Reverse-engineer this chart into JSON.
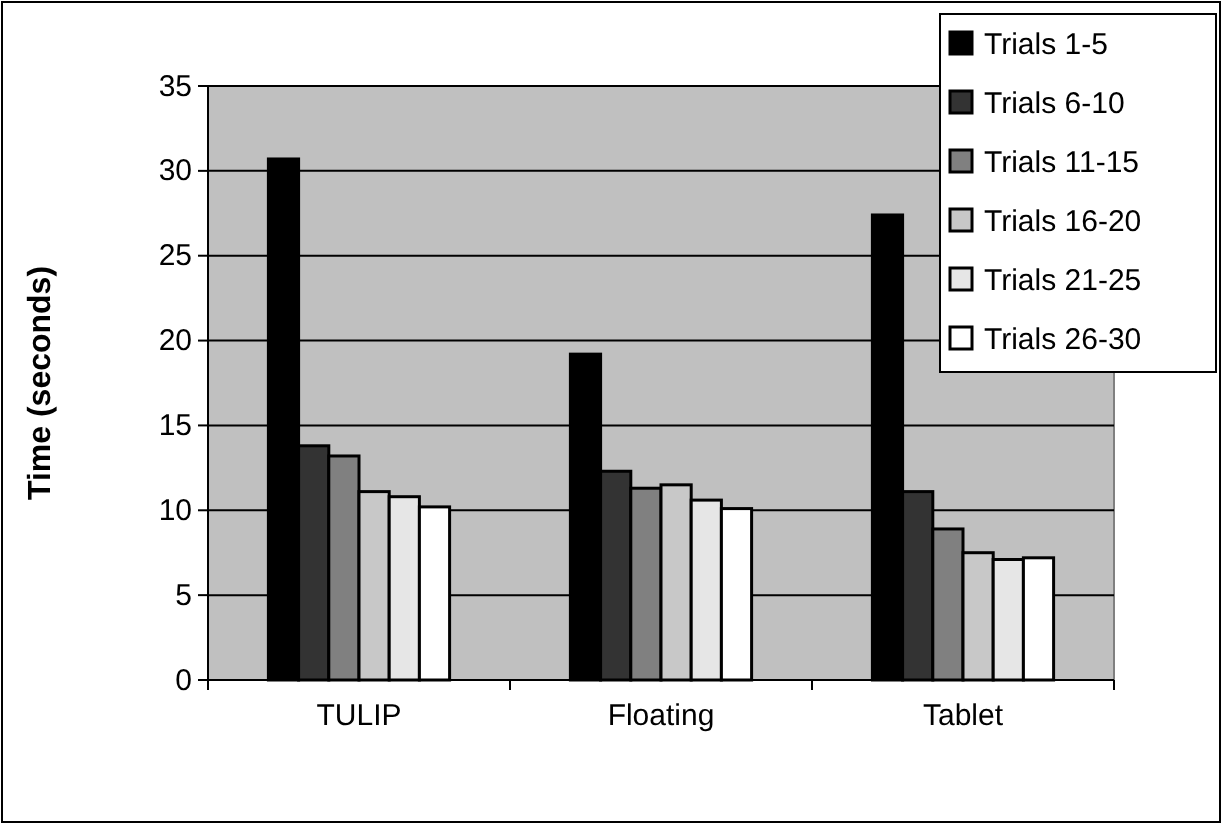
{
  "chart_data": {
    "type": "bar",
    "ylabel": "Time (seconds)",
    "categories": [
      "TULIP",
      "Floating",
      "Tablet"
    ],
    "series": [
      {
        "name": "Trials 1-5",
        "color": "#000000",
        "values": [
          30.7,
          19.2,
          27.4
        ]
      },
      {
        "name": "Trials 6-10",
        "color": "#333333",
        "values": [
          13.8,
          12.3,
          11.1
        ]
      },
      {
        "name": "Trials 11-15",
        "color": "#808080",
        "values": [
          13.2,
          11.3,
          8.9
        ]
      },
      {
        "name": "Trials 16-20",
        "color": "#c8c8c8",
        "values": [
          11.1,
          11.5,
          7.5
        ]
      },
      {
        "name": "Trials 21-25",
        "color": "#e6e6e6",
        "values": [
          10.8,
          10.6,
          7.1
        ]
      },
      {
        "name": "Trials 26-30",
        "color": "#ffffff",
        "values": [
          10.2,
          10.1,
          7.2
        ]
      }
    ],
    "ylim": [
      0,
      35
    ],
    "yticks": [
      0,
      5,
      10,
      15,
      20,
      25,
      30,
      35
    ],
    "grid": "y",
    "legend": "top right"
  }
}
